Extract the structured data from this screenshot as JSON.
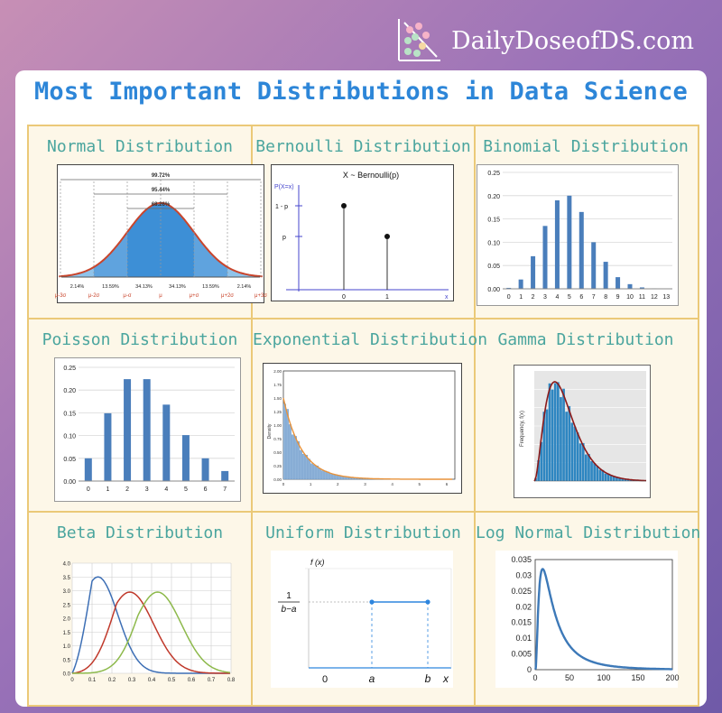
{
  "header": {
    "brand": "DailyDoseofDS.com",
    "title": "Most Important Distributions in Data Science"
  },
  "cells": {
    "normal": {
      "title": "Normal Distribution",
      "spans": [
        "99.72%",
        "95.44%",
        "68.26%"
      ],
      "pcts": [
        "2.14%",
        "13.59%",
        "34.13%",
        "34.13%",
        "13.59%",
        "2.14%"
      ],
      "ticks": [
        "μ-3σ",
        "μ-2σ",
        "μ-σ",
        "μ",
        "μ+σ",
        "μ+2σ",
        "μ+3σ"
      ]
    },
    "bernoulli": {
      "title": "Bernoulli Distribution",
      "heading": "X ~ Bernoulli(p)",
      "ylabel": "P(X=x)",
      "ytick_hi": "1 - p",
      "ytick_lo": "p",
      "xlabel": "x",
      "x0": "0",
      "x1": "1"
    },
    "binomial": {
      "title": "Binomial Distribution",
      "x": [
        "0",
        "1",
        "2",
        "3",
        "4",
        "5",
        "6",
        "7",
        "8",
        "9",
        "10",
        "11",
        "12",
        "13"
      ],
      "values": [
        0.002,
        0.02,
        0.07,
        0.135,
        0.19,
        0.2,
        0.165,
        0.1,
        0.058,
        0.025,
        0.01,
        0.003,
        0.001,
        0.0005
      ],
      "yticks": [
        "0.25",
        "0.20",
        "0.15",
        "0.10",
        "0.05",
        "0.00"
      ],
      "ymax": 0.25
    },
    "poisson": {
      "title": "Poisson Distribution",
      "x": [
        "0",
        "1",
        "2",
        "3",
        "4",
        "5",
        "6",
        "7"
      ],
      "values": [
        0.05,
        0.149,
        0.224,
        0.224,
        0.168,
        0.101,
        0.05,
        0.022
      ],
      "yticks": [
        "0.25",
        "0.20",
        "0.15",
        "0.10",
        "0.05",
        "0.00"
      ],
      "ymax": 0.25
    },
    "exponential": {
      "title": "Exponential Distribution",
      "ylabel": "Density",
      "yticks": [
        "2.00",
        "1.75",
        "1.50",
        "1.25",
        "1.00",
        "0.75",
        "0.50",
        "0.25",
        "0.00"
      ],
      "xticks": [
        "0",
        "1",
        "2",
        "3",
        "4",
        "5",
        "6"
      ]
    },
    "gamma": {
      "title": "Gamma Distribution",
      "ylabel": "Frequency, f(x)"
    },
    "beta": {
      "title": "Beta Distribution",
      "yticks": [
        "4.0",
        "3.5",
        "3.0",
        "2.5",
        "2.0",
        "1.5",
        "1.0",
        "0.5",
        "0.0"
      ],
      "xticks": [
        "0",
        "0.1",
        "0.2",
        "0.3",
        "0.4",
        "0.5",
        "0.6",
        "0.7",
        "0.8"
      ]
    },
    "uniform": {
      "title": "Uniform Distribution",
      "fx": "f (x)",
      "num": "1",
      "den": "b−a",
      "zero": "0",
      "a": "a",
      "b": "b",
      "x": "x"
    },
    "lognormal": {
      "title": "Log Normal Distribution",
      "yticks": [
        "0.035",
        "0.03",
        "0.025",
        "0.02",
        "0.015",
        "0.01",
        "0.005",
        "0"
      ],
      "xticks": [
        "0",
        "50",
        "100",
        "150",
        "200"
      ]
    }
  },
  "colors": {
    "accent": "#2d86d8",
    "teal": "#4aa59e",
    "bar": "#4a7ebb",
    "grid_border": "#ebc978"
  }
}
